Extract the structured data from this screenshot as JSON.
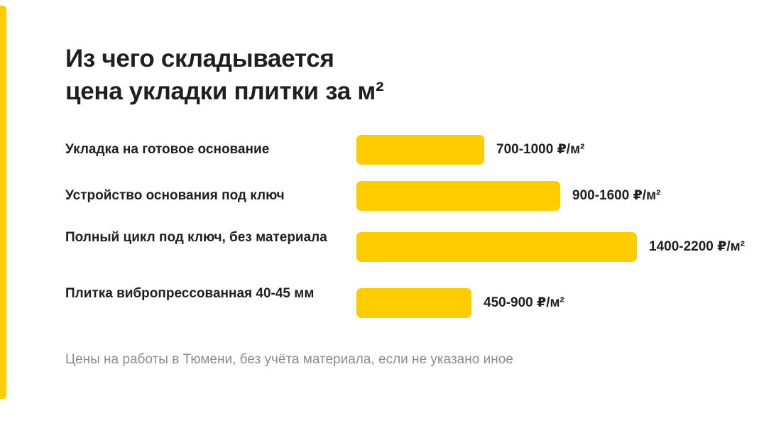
{
  "colors": {
    "accent": "#FFCC00",
    "bar": "#FFCC00",
    "text": "#1F1F1F",
    "muted": "#8C8C8C"
  },
  "title": {
    "line1": "Из чего складывается",
    "line2": "цена укладки плитки за м²"
  },
  "chart_data": {
    "type": "bar",
    "orientation": "horizontal",
    "title": "Из чего складывается цена укладки плитки за м²",
    "unit": "₽/м²",
    "categories": [
      "Укладка на готовое основание",
      "Устройство основания под ключ",
      "Полный цикл под ключ, без материала",
      "Плитка вибропрессованная 40-45 мм"
    ],
    "ranges": [
      [
        700,
        1000
      ],
      [
        900,
        1600
      ],
      [
        1400,
        2200
      ],
      [
        450,
        900
      ]
    ],
    "value_labels": [
      "700-1000 ₽/м²",
      "900-1600 ₽/м²",
      "1400-2200 ₽/м²",
      "450-900 ₽/м²"
    ],
    "grid": false,
    "legend": "none"
  },
  "footnote": "Цены на работы в Тюмени, без учёта материала, если не указано иное"
}
